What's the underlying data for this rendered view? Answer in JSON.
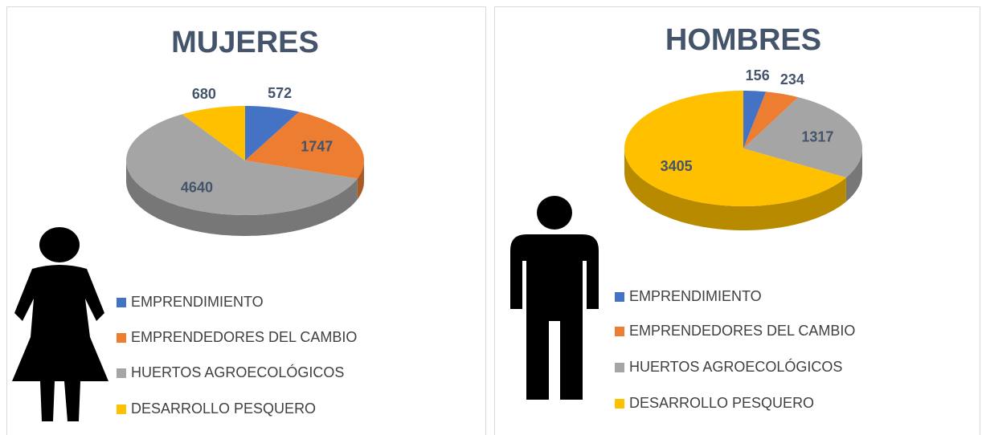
{
  "chart_data": [
    {
      "type": "pie",
      "title": "MUJERES",
      "categories": [
        "EMPRENDIMIENTO",
        "EMPRENDEDORES DEL CAMBIO",
        "HUERTOS AGROECOLÓGICOS",
        "DESARROLLO PESQUERO"
      ],
      "values": [
        572,
        1747,
        4640,
        680
      ],
      "colors": [
        "#4472c4",
        "#ed7d31",
        "#a5a5a5",
        "#ffc000"
      ]
    },
    {
      "type": "pie",
      "title": "HOMBRES",
      "categories": [
        "EMPRENDIMIENTO",
        "EMPRENDEDORES DEL CAMBIO",
        "HUERTOS AGROECOLÓGICOS",
        "DESARROLLO PESQUERO"
      ],
      "values": [
        156,
        234,
        1317,
        3405
      ],
      "colors": [
        "#4472c4",
        "#ed7d31",
        "#a5a5a5",
        "#ffc000"
      ]
    }
  ]
}
